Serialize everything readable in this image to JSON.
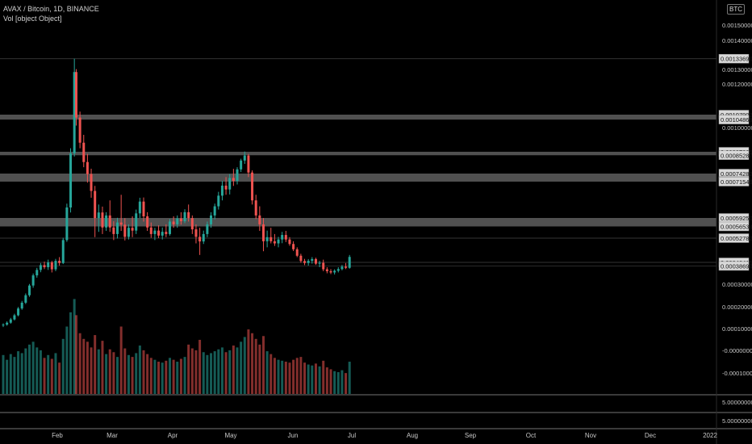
{
  "header": {
    "symbol_line": "AVAX / Bitcoin, 1D, BINANCE",
    "volume_line": "Vol [object Object]",
    "currency_badge": "BTC"
  },
  "colors": {
    "background": "#000000",
    "up": "#26a69a",
    "down": "#ef5350",
    "zone": "#6b6b6b",
    "axis_text": "#c8c8c8",
    "label_bg": "#d9d9d9",
    "label_text": "#111111"
  },
  "chart_data": {
    "type": "candlestick",
    "price_axis": {
      "ticks": [
        {
          "value": 0.0015,
          "label": "0.00150000"
        },
        {
          "value": 0.0014,
          "label": "0.00140000"
        },
        {
          "value": 0.0013,
          "label": "0.00130000"
        },
        {
          "value": 0.0012,
          "label": "0.00120000"
        },
        {
          "value": 0.001,
          "label": "0.00100000"
        },
        {
          "value": 0.0003,
          "label": "0.00030000"
        },
        {
          "value": 0.0002,
          "label": "0.00020000"
        },
        {
          "value": 0.0001,
          "label": "0.00010000"
        },
        {
          "value": -0.0,
          "label": "-0.00000000"
        },
        {
          "value": -0.0001,
          "label": "-0.00010000"
        }
      ],
      "level_labels": [
        {
          "value": 0.0013369,
          "label": "0.00133690"
        },
        {
          "value": 0.00107902,
          "label": "0.00107902"
        },
        {
          "value": 0.00104869,
          "label": "0.00104869"
        },
        {
          "value": 0.00087365,
          "label": "0.00087365"
        },
        {
          "value": 0.00085287,
          "label": "0.00085287"
        },
        {
          "value": 0.00074282,
          "label": "0.00074282"
        },
        {
          "value": 0.00071723,
          "label": "0.00071723"
        },
        {
          "value": 0.00071546,
          "label": "0.00071546"
        },
        {
          "value": 0.0005925,
          "label": "0.00059250"
        },
        {
          "value": 0.00056534,
          "label": "0.00056534"
        },
        {
          "value": 0.00052782,
          "label": "0.00052782"
        },
        {
          "value": 0.00040415,
          "label": "0.00040415"
        },
        {
          "value": 0.00038694,
          "label": "0.00038694"
        }
      ]
    },
    "zones": [
      {
        "top": 0.00107902,
        "bottom": 0.00104869
      },
      {
        "top": 0.00087365,
        "bottom": 0.00085287
      },
      {
        "top": 0.00074282,
        "bottom": 0.00071546
      },
      {
        "top": 0.0005925,
        "bottom": 0.00056534
      }
    ],
    "reference_lines": [
      0.0013369,
      0.00052782,
      0.00040415,
      0.00038694
    ],
    "lower_pane_labels": [
      "5.00000000",
      "5.00000000"
    ],
    "x_axis": {
      "labels": [
        "Feb",
        "Mar",
        "Apr",
        "May",
        "Jun",
        "Jul",
        "Aug",
        "Sep",
        "Oct",
        "Nov",
        "Dec",
        "2022"
      ]
    },
    "candles": [
      {
        "d": "2021-01-01",
        "o": 0.000116,
        "h": 0.000124,
        "l": 0.000107,
        "c": 0.000118,
        "v": 0.41
      },
      {
        "d": "2021-01-03",
        "o": 0.000118,
        "h": 0.000133,
        "l": 0.000113,
        "c": 0.000127,
        "v": 0.36
      },
      {
        "d": "2021-01-05",
        "o": 0.000127,
        "h": 0.000149,
        "l": 0.000122,
        "c": 0.000142,
        "v": 0.42
      },
      {
        "d": "2021-01-07",
        "o": 0.000142,
        "h": 0.000168,
        "l": 0.000137,
        "c": 0.000161,
        "v": 0.39
      },
      {
        "d": "2021-01-09",
        "o": 0.000161,
        "h": 0.000199,
        "l": 0.000156,
        "c": 0.000192,
        "v": 0.45
      },
      {
        "d": "2021-01-11",
        "o": 0.000192,
        "h": 0.000226,
        "l": 0.000186,
        "c": 0.000218,
        "v": 0.43
      },
      {
        "d": "2021-01-13",
        "o": 0.000218,
        "h": 0.000259,
        "l": 0.000212,
        "c": 0.000251,
        "v": 0.48
      },
      {
        "d": "2021-01-15",
        "o": 0.000251,
        "h": 0.000301,
        "l": 0.000244,
        "c": 0.000294,
        "v": 0.52
      },
      {
        "d": "2021-01-17",
        "o": 0.000294,
        "h": 0.000351,
        "l": 0.000284,
        "c": 0.000342,
        "v": 0.55
      },
      {
        "d": "2021-01-19",
        "o": 0.000342,
        "h": 0.000378,
        "l": 0.000331,
        "c": 0.000368,
        "v": 0.49
      },
      {
        "d": "2021-01-21",
        "o": 0.000368,
        "h": 0.000401,
        "l": 0.000357,
        "c": 0.000391,
        "v": 0.46
      },
      {
        "d": "2021-01-23",
        "o": 0.000391,
        "h": 0.000408,
        "l": 0.000372,
        "c": 0.000381,
        "v": 0.38
      },
      {
        "d": "2021-01-25",
        "o": 0.000381,
        "h": 0.000418,
        "l": 0.000368,
        "c": 0.000404,
        "v": 0.41
      },
      {
        "d": "2021-01-27",
        "o": 0.000404,
        "h": 0.000412,
        "l": 0.000356,
        "c": 0.000371,
        "v": 0.37
      },
      {
        "d": "2021-01-29",
        "o": 0.000371,
        "h": 0.000422,
        "l": 0.000362,
        "c": 0.000412,
        "v": 0.43
      },
      {
        "d": "2021-01-31",
        "o": 0.000412,
        "h": 0.000431,
        "l": 0.000389,
        "c": 0.000401,
        "v": 0.33
      },
      {
        "d": "2021-02-02",
        "o": 0.000401,
        "h": 0.000529,
        "l": 0.000396,
        "c": 0.000518,
        "v": 0.58
      },
      {
        "d": "2021-02-04",
        "o": 0.000518,
        "h": 0.000641,
        "l": 0.000509,
        "c": 0.000628,
        "v": 0.71
      },
      {
        "d": "2021-02-06",
        "o": 0.000628,
        "h": 0.000892,
        "l": 0.000611,
        "c": 0.000864,
        "v": 0.86
      },
      {
        "d": "2021-02-08",
        "o": 0.000864,
        "h": 0.001337,
        "l": 0.000845,
        "c": 0.001282,
        "v": 1.0
      },
      {
        "d": "2021-02-09",
        "o": 0.001282,
        "h": 0.001301,
        "l": 0.001012,
        "c": 0.001061,
        "v": 0.83
      },
      {
        "d": "2021-02-11",
        "o": 0.001061,
        "h": 0.001091,
        "l": 0.000892,
        "c": 0.000921,
        "v": 0.64
      },
      {
        "d": "2021-02-13",
        "o": 0.000921,
        "h": 0.000962,
        "l": 0.000781,
        "c": 0.000812,
        "v": 0.58
      },
      {
        "d": "2021-02-15",
        "o": 0.000812,
        "h": 0.000861,
        "l": 0.000712,
        "c": 0.000741,
        "v": 0.55
      },
      {
        "d": "2021-02-17",
        "o": 0.000741,
        "h": 0.000772,
        "l": 0.000661,
        "c": 0.000684,
        "v": 0.49
      },
      {
        "d": "2021-02-19",
        "o": 0.000684,
        "h": 0.000701,
        "l": 0.000531,
        "c": 0.000592,
        "v": 0.62
      },
      {
        "d": "2021-02-21",
        "o": 0.000592,
        "h": 0.000638,
        "l": 0.000548,
        "c": 0.000611,
        "v": 0.47
      },
      {
        "d": "2021-02-23",
        "o": 0.000611,
        "h": 0.000631,
        "l": 0.000541,
        "c": 0.000562,
        "v": 0.56
      },
      {
        "d": "2021-02-25",
        "o": 0.000562,
        "h": 0.000612,
        "l": 0.000551,
        "c": 0.000601,
        "v": 0.42
      },
      {
        "d": "2021-02-27",
        "o": 0.000601,
        "h": 0.000652,
        "l": 0.000548,
        "c": 0.000562,
        "v": 0.47
      },
      {
        "d": "2021-03-01",
        "o": 0.000562,
        "h": 0.000582,
        "l": 0.000518,
        "c": 0.000541,
        "v": 0.44
      },
      {
        "d": "2021-03-03",
        "o": 0.000541,
        "h": 0.000593,
        "l": 0.000526,
        "c": 0.000578,
        "v": 0.39
      },
      {
        "d": "2021-03-05",
        "o": 0.000578,
        "h": 0.000671,
        "l": 0.000551,
        "c": 0.000571,
        "v": 0.71
      },
      {
        "d": "2021-03-07",
        "o": 0.000571,
        "h": 0.000592,
        "l": 0.000516,
        "c": 0.000532,
        "v": 0.48
      },
      {
        "d": "2021-03-09",
        "o": 0.000532,
        "h": 0.000572,
        "l": 0.000521,
        "c": 0.000561,
        "v": 0.41
      },
      {
        "d": "2021-03-11",
        "o": 0.000561,
        "h": 0.000598,
        "l": 0.000531,
        "c": 0.000552,
        "v": 0.39
      },
      {
        "d": "2021-03-13",
        "o": 0.000552,
        "h": 0.000621,
        "l": 0.000541,
        "c": 0.000608,
        "v": 0.43
      },
      {
        "d": "2021-03-15",
        "o": 0.000608,
        "h": 0.000661,
        "l": 0.000592,
        "c": 0.000648,
        "v": 0.51
      },
      {
        "d": "2021-03-17",
        "o": 0.000648,
        "h": 0.000662,
        "l": 0.000581,
        "c": 0.000598,
        "v": 0.46
      },
      {
        "d": "2021-03-19",
        "o": 0.000598,
        "h": 0.000612,
        "l": 0.000551,
        "c": 0.000562,
        "v": 0.42
      },
      {
        "d": "2021-03-21",
        "o": 0.000562,
        "h": 0.000578,
        "l": 0.000529,
        "c": 0.000541,
        "v": 0.38
      },
      {
        "d": "2021-03-23",
        "o": 0.000541,
        "h": 0.000561,
        "l": 0.000518,
        "c": 0.000552,
        "v": 0.36
      },
      {
        "d": "2021-03-25",
        "o": 0.000552,
        "h": 0.000569,
        "l": 0.000528,
        "c": 0.000536,
        "v": 0.34
      },
      {
        "d": "2021-03-27",
        "o": 0.000536,
        "h": 0.000562,
        "l": 0.000521,
        "c": 0.000548,
        "v": 0.33
      },
      {
        "d": "2021-03-29",
        "o": 0.000548,
        "h": 0.000572,
        "l": 0.000531,
        "c": 0.000541,
        "v": 0.35
      },
      {
        "d": "2021-03-31",
        "o": 0.000541,
        "h": 0.000589,
        "l": 0.000536,
        "c": 0.000581,
        "v": 0.38
      },
      {
        "d": "2021-04-02",
        "o": 0.000581,
        "h": 0.000598,
        "l": 0.000561,
        "c": 0.000572,
        "v": 0.36
      },
      {
        "d": "2021-04-04",
        "o": 0.000572,
        "h": 0.000601,
        "l": 0.000561,
        "c": 0.000591,
        "v": 0.34
      },
      {
        "d": "2021-04-06",
        "o": 0.000591,
        "h": 0.000612,
        "l": 0.000571,
        "c": 0.000582,
        "v": 0.37
      },
      {
        "d": "2021-04-08",
        "o": 0.000582,
        "h": 0.000622,
        "l": 0.000576,
        "c": 0.000612,
        "v": 0.39
      },
      {
        "d": "2021-04-10",
        "o": 0.000612,
        "h": 0.000638,
        "l": 0.000581,
        "c": 0.000592,
        "v": 0.52
      },
      {
        "d": "2021-04-12",
        "o": 0.000592,
        "h": 0.000601,
        "l": 0.000541,
        "c": 0.000556,
        "v": 0.48
      },
      {
        "d": "2021-04-14",
        "o": 0.000556,
        "h": 0.000572,
        "l": 0.000501,
        "c": 0.000532,
        "v": 0.46
      },
      {
        "d": "2021-04-16",
        "o": 0.000532,
        "h": 0.000561,
        "l": 0.000442,
        "c": 0.000511,
        "v": 0.57
      },
      {
        "d": "2021-04-18",
        "o": 0.000511,
        "h": 0.000552,
        "l": 0.000498,
        "c": 0.000541,
        "v": 0.44
      },
      {
        "d": "2021-04-20",
        "o": 0.000541,
        "h": 0.000581,
        "l": 0.000531,
        "c": 0.000572,
        "v": 0.41
      },
      {
        "d": "2021-04-22",
        "o": 0.000572,
        "h": 0.000612,
        "l": 0.000561,
        "c": 0.000601,
        "v": 0.43
      },
      {
        "d": "2021-04-24",
        "o": 0.000601,
        "h": 0.000641,
        "l": 0.000588,
        "c": 0.000632,
        "v": 0.45
      },
      {
        "d": "2021-04-26",
        "o": 0.000632,
        "h": 0.000681,
        "l": 0.000621,
        "c": 0.000668,
        "v": 0.47
      },
      {
        "d": "2021-04-28",
        "o": 0.000668,
        "h": 0.000718,
        "l": 0.000652,
        "c": 0.000702,
        "v": 0.49
      },
      {
        "d": "2021-04-30",
        "o": 0.000702,
        "h": 0.000731,
        "l": 0.000671,
        "c": 0.000689,
        "v": 0.44
      },
      {
        "d": "2021-05-02",
        "o": 0.000689,
        "h": 0.000741,
        "l": 0.000672,
        "c": 0.000728,
        "v": 0.46
      },
      {
        "d": "2021-05-04",
        "o": 0.000728,
        "h": 0.000771,
        "l": 0.000701,
        "c": 0.000718,
        "v": 0.51
      },
      {
        "d": "2021-05-06",
        "o": 0.000718,
        "h": 0.000781,
        "l": 0.000706,
        "c": 0.000768,
        "v": 0.49
      },
      {
        "d": "2021-05-08",
        "o": 0.000768,
        "h": 0.000832,
        "l": 0.000752,
        "c": 0.000821,
        "v": 0.55
      },
      {
        "d": "2021-05-10",
        "o": 0.000821,
        "h": 0.000875,
        "l": 0.000801,
        "c": 0.000851,
        "v": 0.6
      },
      {
        "d": "2021-05-12",
        "o": 0.000851,
        "h": 0.000861,
        "l": 0.000731,
        "c": 0.000749,
        "v": 0.68
      },
      {
        "d": "2021-05-14",
        "o": 0.000749,
        "h": 0.000762,
        "l": 0.000638,
        "c": 0.000652,
        "v": 0.64
      },
      {
        "d": "2021-05-16",
        "o": 0.000652,
        "h": 0.000671,
        "l": 0.000589,
        "c": 0.000601,
        "v": 0.58
      },
      {
        "d": "2021-05-18",
        "o": 0.000601,
        "h": 0.000632,
        "l": 0.000551,
        "c": 0.000572,
        "v": 0.52
      },
      {
        "d": "2021-05-20",
        "o": 0.000572,
        "h": 0.000592,
        "l": 0.000461,
        "c": 0.000512,
        "v": 0.61
      },
      {
        "d": "2021-05-22",
        "o": 0.000512,
        "h": 0.000552,
        "l": 0.000481,
        "c": 0.000531,
        "v": 0.45
      },
      {
        "d": "2021-05-24",
        "o": 0.000531,
        "h": 0.000561,
        "l": 0.000501,
        "c": 0.000512,
        "v": 0.42
      },
      {
        "d": "2021-05-26",
        "o": 0.000512,
        "h": 0.000541,
        "l": 0.000488,
        "c": 0.000501,
        "v": 0.38
      },
      {
        "d": "2021-05-28",
        "o": 0.000501,
        "h": 0.000532,
        "l": 0.000481,
        "c": 0.000521,
        "v": 0.36
      },
      {
        "d": "2021-05-30",
        "o": 0.000521,
        "h": 0.000548,
        "l": 0.000502,
        "c": 0.000538,
        "v": 0.35
      },
      {
        "d": "2021-06-01",
        "o": 0.000538,
        "h": 0.000551,
        "l": 0.000508,
        "c": 0.000521,
        "v": 0.34
      },
      {
        "d": "2021-06-03",
        "o": 0.000521,
        "h": 0.000531,
        "l": 0.000489,
        "c": 0.000498,
        "v": 0.33
      },
      {
        "d": "2021-06-05",
        "o": 0.000498,
        "h": 0.000512,
        "l": 0.000462,
        "c": 0.000471,
        "v": 0.36
      },
      {
        "d": "2021-06-07",
        "o": 0.000471,
        "h": 0.000481,
        "l": 0.000431,
        "c": 0.000438,
        "v": 0.38
      },
      {
        "d": "2021-06-09",
        "o": 0.000438,
        "h": 0.000448,
        "l": 0.000402,
        "c": 0.000411,
        "v": 0.39
      },
      {
        "d": "2021-06-11",
        "o": 0.000411,
        "h": 0.000422,
        "l": 0.000391,
        "c": 0.000401,
        "v": 0.33
      },
      {
        "d": "2021-06-13",
        "o": 0.000401,
        "h": 0.000421,
        "l": 0.000389,
        "c": 0.000412,
        "v": 0.31
      },
      {
        "d": "2021-06-15",
        "o": 0.000412,
        "h": 0.000431,
        "l": 0.000398,
        "c": 0.000421,
        "v": 0.3
      },
      {
        "d": "2021-06-17",
        "o": 0.000421,
        "h": 0.000428,
        "l": 0.000392,
        "c": 0.000398,
        "v": 0.32
      },
      {
        "d": "2021-06-19",
        "o": 0.000398,
        "h": 0.000412,
        "l": 0.000381,
        "c": 0.000402,
        "v": 0.29
      },
      {
        "d": "2021-06-21",
        "o": 0.000402,
        "h": 0.000418,
        "l": 0.000362,
        "c": 0.000371,
        "v": 0.35
      },
      {
        "d": "2021-06-23",
        "o": 0.000371,
        "h": 0.000381,
        "l": 0.000352,
        "c": 0.000362,
        "v": 0.28
      },
      {
        "d": "2021-06-25",
        "o": 0.000362,
        "h": 0.000372,
        "l": 0.000348,
        "c": 0.000356,
        "v": 0.26
      },
      {
        "d": "2021-06-27",
        "o": 0.000356,
        "h": 0.000371,
        "l": 0.000346,
        "c": 0.000364,
        "v": 0.24
      },
      {
        "d": "2021-06-29",
        "o": 0.000364,
        "h": 0.000381,
        "l": 0.000356,
        "c": 0.000372,
        "v": 0.23
      },
      {
        "d": "2021-07-01",
        "o": 0.000372,
        "h": 0.000392,
        "l": 0.000366,
        "c": 0.000384,
        "v": 0.25
      },
      {
        "d": "2021-07-03",
        "o": 0.000384,
        "h": 0.000401,
        "l": 0.000372,
        "c": 0.000378,
        "v": 0.22
      },
      {
        "d": "2021-07-05",
        "o": 0.000378,
        "h": 0.000442,
        "l": 0.000374,
        "c": 0.000432,
        "v": 0.34
      }
    ]
  }
}
